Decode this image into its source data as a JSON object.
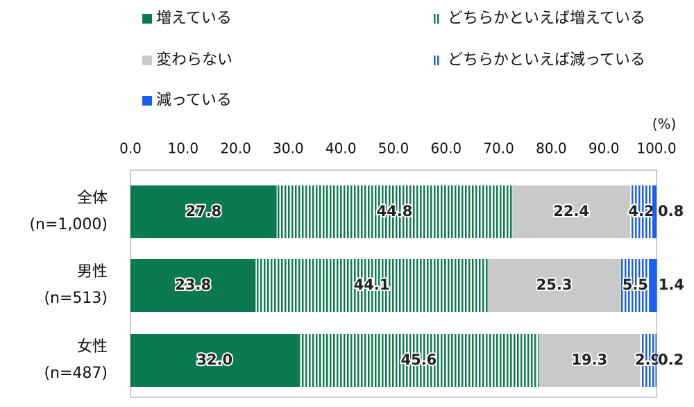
{
  "chart_data": {
    "type": "stacked-bar-horizontal",
    "axis_unit": "(%)",
    "categories": [
      [
        "全体",
        "(n=1,000)"
      ],
      [
        "男性",
        "(n=513)"
      ],
      [
        "女性",
        "(n=487)"
      ]
    ],
    "series": [
      {
        "name": "増えている",
        "color": "#0b7b4f",
        "pattern": "solid",
        "values": [
          27.8,
          23.8,
          32.0
        ],
        "value_labels": [
          "27.8",
          "23.8",
          "32.0"
        ]
      },
      {
        "name": "どちらかといえば増えている",
        "color": "#0b7b4f",
        "pattern": "vstripe",
        "values": [
          44.8,
          44.1,
          45.6
        ],
        "value_labels": [
          "44.8",
          "44.1",
          "45.6"
        ]
      },
      {
        "name": "変わらない",
        "color": "#c9c9c9",
        "pattern": "solid",
        "values": [
          22.4,
          25.3,
          19.3
        ],
        "value_labels": [
          "22.4",
          "25.3",
          "19.3"
        ]
      },
      {
        "name": "どちらかといえば減っている",
        "color": "#1a5ef0",
        "pattern": "vstripe",
        "values": [
          4.2,
          5.5,
          2.9
        ],
        "value_labels": [
          "4.2",
          "5.5",
          "2.9"
        ]
      },
      {
        "name": "減っている",
        "color": "#1a5ef0",
        "pattern": "solid",
        "values": [
          0.8,
          1.4,
          0.2
        ],
        "value_labels": [
          "0.8",
          "1.4",
          "0.2"
        ]
      }
    ],
    "xlim": [
      0,
      100
    ],
    "xticks": [
      {
        "value": 0,
        "label": "0.0"
      },
      {
        "value": 10,
        "label": "10.0"
      },
      {
        "value": 20,
        "label": "20.0"
      },
      {
        "value": 30,
        "label": "30.0"
      },
      {
        "value": 40,
        "label": "40.0"
      },
      {
        "value": 50,
        "label": "50.0"
      },
      {
        "value": 60,
        "label": "60.0"
      },
      {
        "value": 70,
        "label": "70.0"
      },
      {
        "value": 80,
        "label": "80.0"
      },
      {
        "value": 90,
        "label": "90.0"
      },
      {
        "value": 100,
        "label": "100.0"
      }
    ]
  }
}
